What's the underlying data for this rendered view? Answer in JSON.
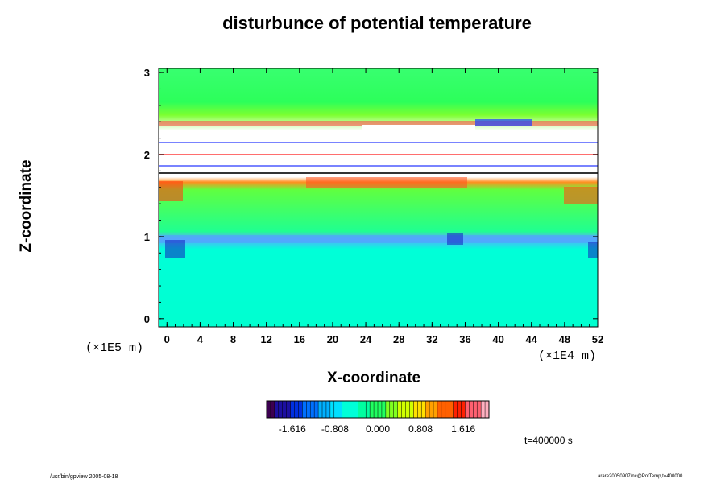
{
  "chart_data": {
    "type": "heatmap",
    "title": "disturbunce of potential temperature",
    "xlabel": "X-coordinate",
    "ylabel": "Z-coordinate",
    "x_unit": "(×1E4 m)",
    "y_unit": "(×1E5 m)",
    "xlim": [
      -1,
      52
    ],
    "ylim": [
      -0.1,
      3.05
    ],
    "x_ticks": [
      0,
      4,
      8,
      12,
      16,
      20,
      24,
      28,
      32,
      36,
      40,
      44,
      48,
      52
    ],
    "y_ticks": [
      0,
      1,
      2,
      3
    ],
    "x_tick_labels": [
      "0",
      "4",
      "8",
      "12",
      "16",
      "20",
      "24",
      "28",
      "32",
      "36",
      "40",
      "44",
      "48",
      "52"
    ],
    "y_tick_labels": [
      "0",
      "1",
      "2",
      "3"
    ],
    "colorbar": {
      "ticks": [
        -1.616,
        -0.808,
        0.0,
        0.808,
        1.616
      ],
      "tick_labels": [
        "-1.616",
        "-0.808",
        "0.000",
        "0.808",
        "1.616"
      ],
      "colors": [
        "#3c0050",
        "#1c0fa0",
        "#0030e0",
        "#0070ff",
        "#00b0ff",
        "#00e0ff",
        "#00ffd8",
        "#00ffa0",
        "#20ff60",
        "#80ff20",
        "#d0ff00",
        "#ffe000",
        "#ffa000",
        "#ff6000",
        "#ff2000",
        "#ff6070",
        "#ffb0c0"
      ]
    },
    "time_label": "t=400000 s"
  },
  "footer": {
    "left": "/usr/bin/gpview 2005-08-18",
    "right": "arare20050907/nc@PotTemp,t=400000"
  }
}
